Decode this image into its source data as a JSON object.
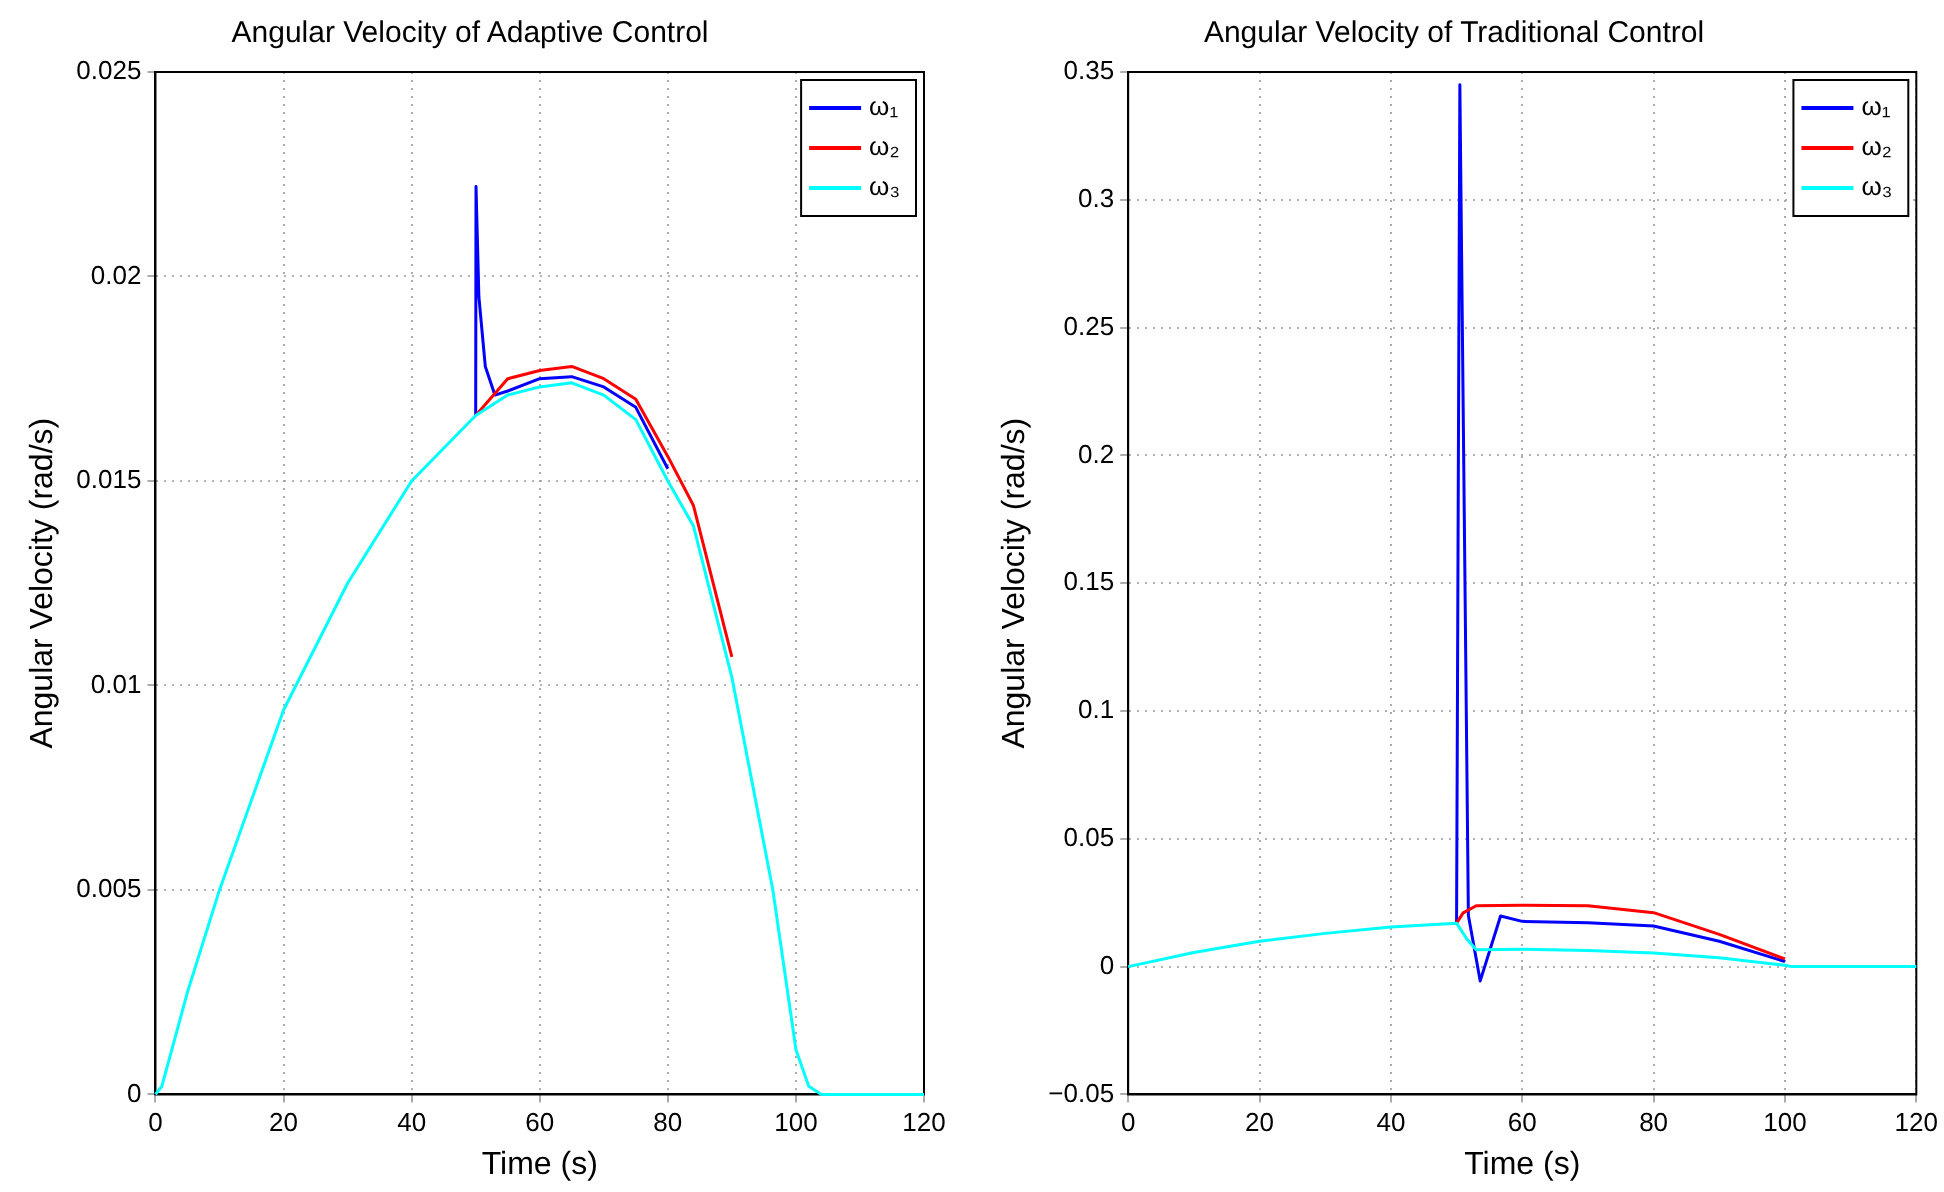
{
  "chart_data": [
    {
      "type": "line",
      "title": "Angular Velocity of Adaptive Control",
      "xlabel": "Time (s)",
      "ylabel": "Angular Velocity (rad/s)",
      "xlim": [
        0,
        120
      ],
      "xticks": [
        0,
        20,
        40,
        60,
        80,
        100,
        120
      ],
      "ylim": [
        0,
        0.025
      ],
      "yticks": [
        0,
        0.005,
        0.01,
        0.015,
        0.02,
        0.025
      ],
      "grid": true,
      "legend": "top right",
      "marker": "none",
      "line_style": "solid",
      "series": [
        {
          "name": "ω₁",
          "color": "#0000ff",
          "x": [
            50,
            50.05,
            50.5,
            51.5,
            53,
            55,
            60,
            65,
            70,
            75,
            80
          ],
          "values": [
            0.0166,
            0.0222,
            0.0195,
            0.0178,
            0.0171,
            0.0172,
            0.0175,
            0.01755,
            0.0173,
            0.0168,
            0.0153
          ]
        },
        {
          "name": "ω₂",
          "color": "#ff0000",
          "x": [
            50,
            55,
            60,
            65,
            70,
            75,
            80,
            84,
            90
          ],
          "values": [
            0.0166,
            0.0175,
            0.0177,
            0.0178,
            0.0175,
            0.017,
            0.0156,
            0.0144,
            0.0107
          ]
        },
        {
          "name": "ω₃",
          "color": "#00ffff",
          "x": [
            0,
            1,
            5,
            10,
            20,
            30,
            40,
            50,
            55,
            60,
            65,
            70,
            75,
            80,
            84,
            90,
            96.4,
            100,
            102,
            104,
            120
          ],
          "values": [
            0,
            0.0002,
            0.0025,
            0.005,
            0.0094,
            0.0125,
            0.015,
            0.0166,
            0.0171,
            0.0173,
            0.0174,
            0.0171,
            0.0165,
            0.015,
            0.0139,
            0.0102,
            0.005,
            0.0011,
            0.0002,
            0,
            0
          ]
        }
      ]
    },
    {
      "type": "line",
      "title": "Angular Velocity of Traditional Control",
      "xlabel": "Time (s)",
      "ylabel": "Angular Velocity (rad/s)",
      "xlim": [
        0,
        120
      ],
      "xticks": [
        0,
        20,
        40,
        60,
        80,
        100,
        120
      ],
      "ylim": [
        -0.05,
        0.35
      ],
      "yticks": [
        {
          "value": -0.05,
          "label": "−0.05"
        },
        0,
        0.05,
        0.1,
        0.15,
        0.2,
        0.25,
        0.3,
        0.35
      ],
      "grid": true,
      "legend": "top right",
      "marker": "none",
      "line_style": "solid",
      "series": [
        {
          "name": "ω₁",
          "color": "#0000ff",
          "x": [
            50,
            50.5,
            51.8,
            53.6,
            56.7,
            60,
            70,
            80,
            90,
            100
          ],
          "values": [
            0.017,
            0.345,
            0.02,
            -0.0056,
            0.0198,
            0.0177,
            0.0172,
            0.0159,
            0.0099,
            0.002
          ]
        },
        {
          "name": "ω₂",
          "color": "#ff0000",
          "x": [
            50,
            51,
            53,
            60,
            70,
            80,
            90,
            100
          ],
          "values": [
            0.017,
            0.021,
            0.0238,
            0.024,
            0.0238,
            0.0211,
            0.0126,
            0.003
          ]
        },
        {
          "name": "ω₃",
          "color": "#00ffff",
          "x": [
            0,
            10,
            20,
            30,
            40,
            50,
            51.5,
            53,
            60,
            70,
            80,
            90,
            100,
            101,
            120
          ],
          "values": [
            0,
            0.0055,
            0.0099,
            0.013,
            0.0155,
            0.017,
            0.011,
            0.0066,
            0.0068,
            0.0063,
            0.0053,
            0.0035,
            0.0005,
            0,
            0
          ]
        }
      ]
    }
  ]
}
